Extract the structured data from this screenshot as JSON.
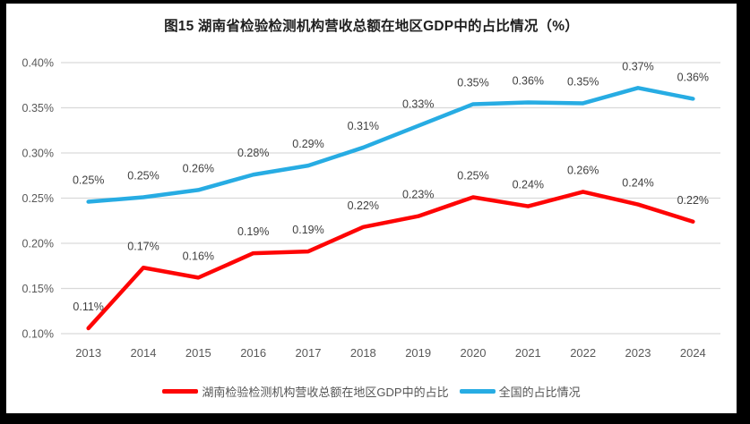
{
  "frame_color": "#000000",
  "chart_data": {
    "type": "line",
    "title": "图15 湖南省检验检测机构营收总额在地区GDP中的占比情况（%）",
    "categories": [
      "2013",
      "2014",
      "2015",
      "2016",
      "2017",
      "2018",
      "2019",
      "2020",
      "2021",
      "2022",
      "2023",
      "2024"
    ],
    "series": [
      {
        "name": "湖南检验检测机构营收总额在地区GDP中的占比",
        "color": "#FE0505",
        "values": [
          0.106,
          0.173,
          0.162,
          0.189,
          0.191,
          0.218,
          0.23,
          0.251,
          0.241,
          0.257,
          0.243,
          0.224
        ],
        "labels": [
          "0.11%",
          "0.17%",
          "0.16%",
          "0.19%",
          "0.19%",
          "0.22%",
          "0.23%",
          "0.25%",
          "0.24%",
          "0.26%",
          "0.24%",
          "0.22%"
        ]
      },
      {
        "name": "全国的占比情况",
        "color": "#27ACE3",
        "values": [
          0.246,
          0.251,
          0.259,
          0.276,
          0.286,
          0.306,
          0.33,
          0.354,
          0.356,
          0.355,
          0.372,
          0.36
        ],
        "labels": [
          "0.25%",
          "0.25%",
          "0.26%",
          "0.28%",
          "0.29%",
          "0.31%",
          "0.33%",
          "0.35%",
          "0.36%",
          "0.35%",
          "0.37%",
          "0.36%"
        ]
      }
    ],
    "ylim": [
      0.1,
      0.4
    ],
    "ytick_step": 0.05,
    "ytick_labels": [
      "0.10%",
      "0.15%",
      "0.20%",
      "0.25%",
      "0.30%",
      "0.35%",
      "0.40%"
    ],
    "grid": true,
    "legend_position": "bottom",
    "grid_color": "#D9D9D9",
    "axis_label_color": "#595959",
    "data_label_color": "#404040"
  }
}
